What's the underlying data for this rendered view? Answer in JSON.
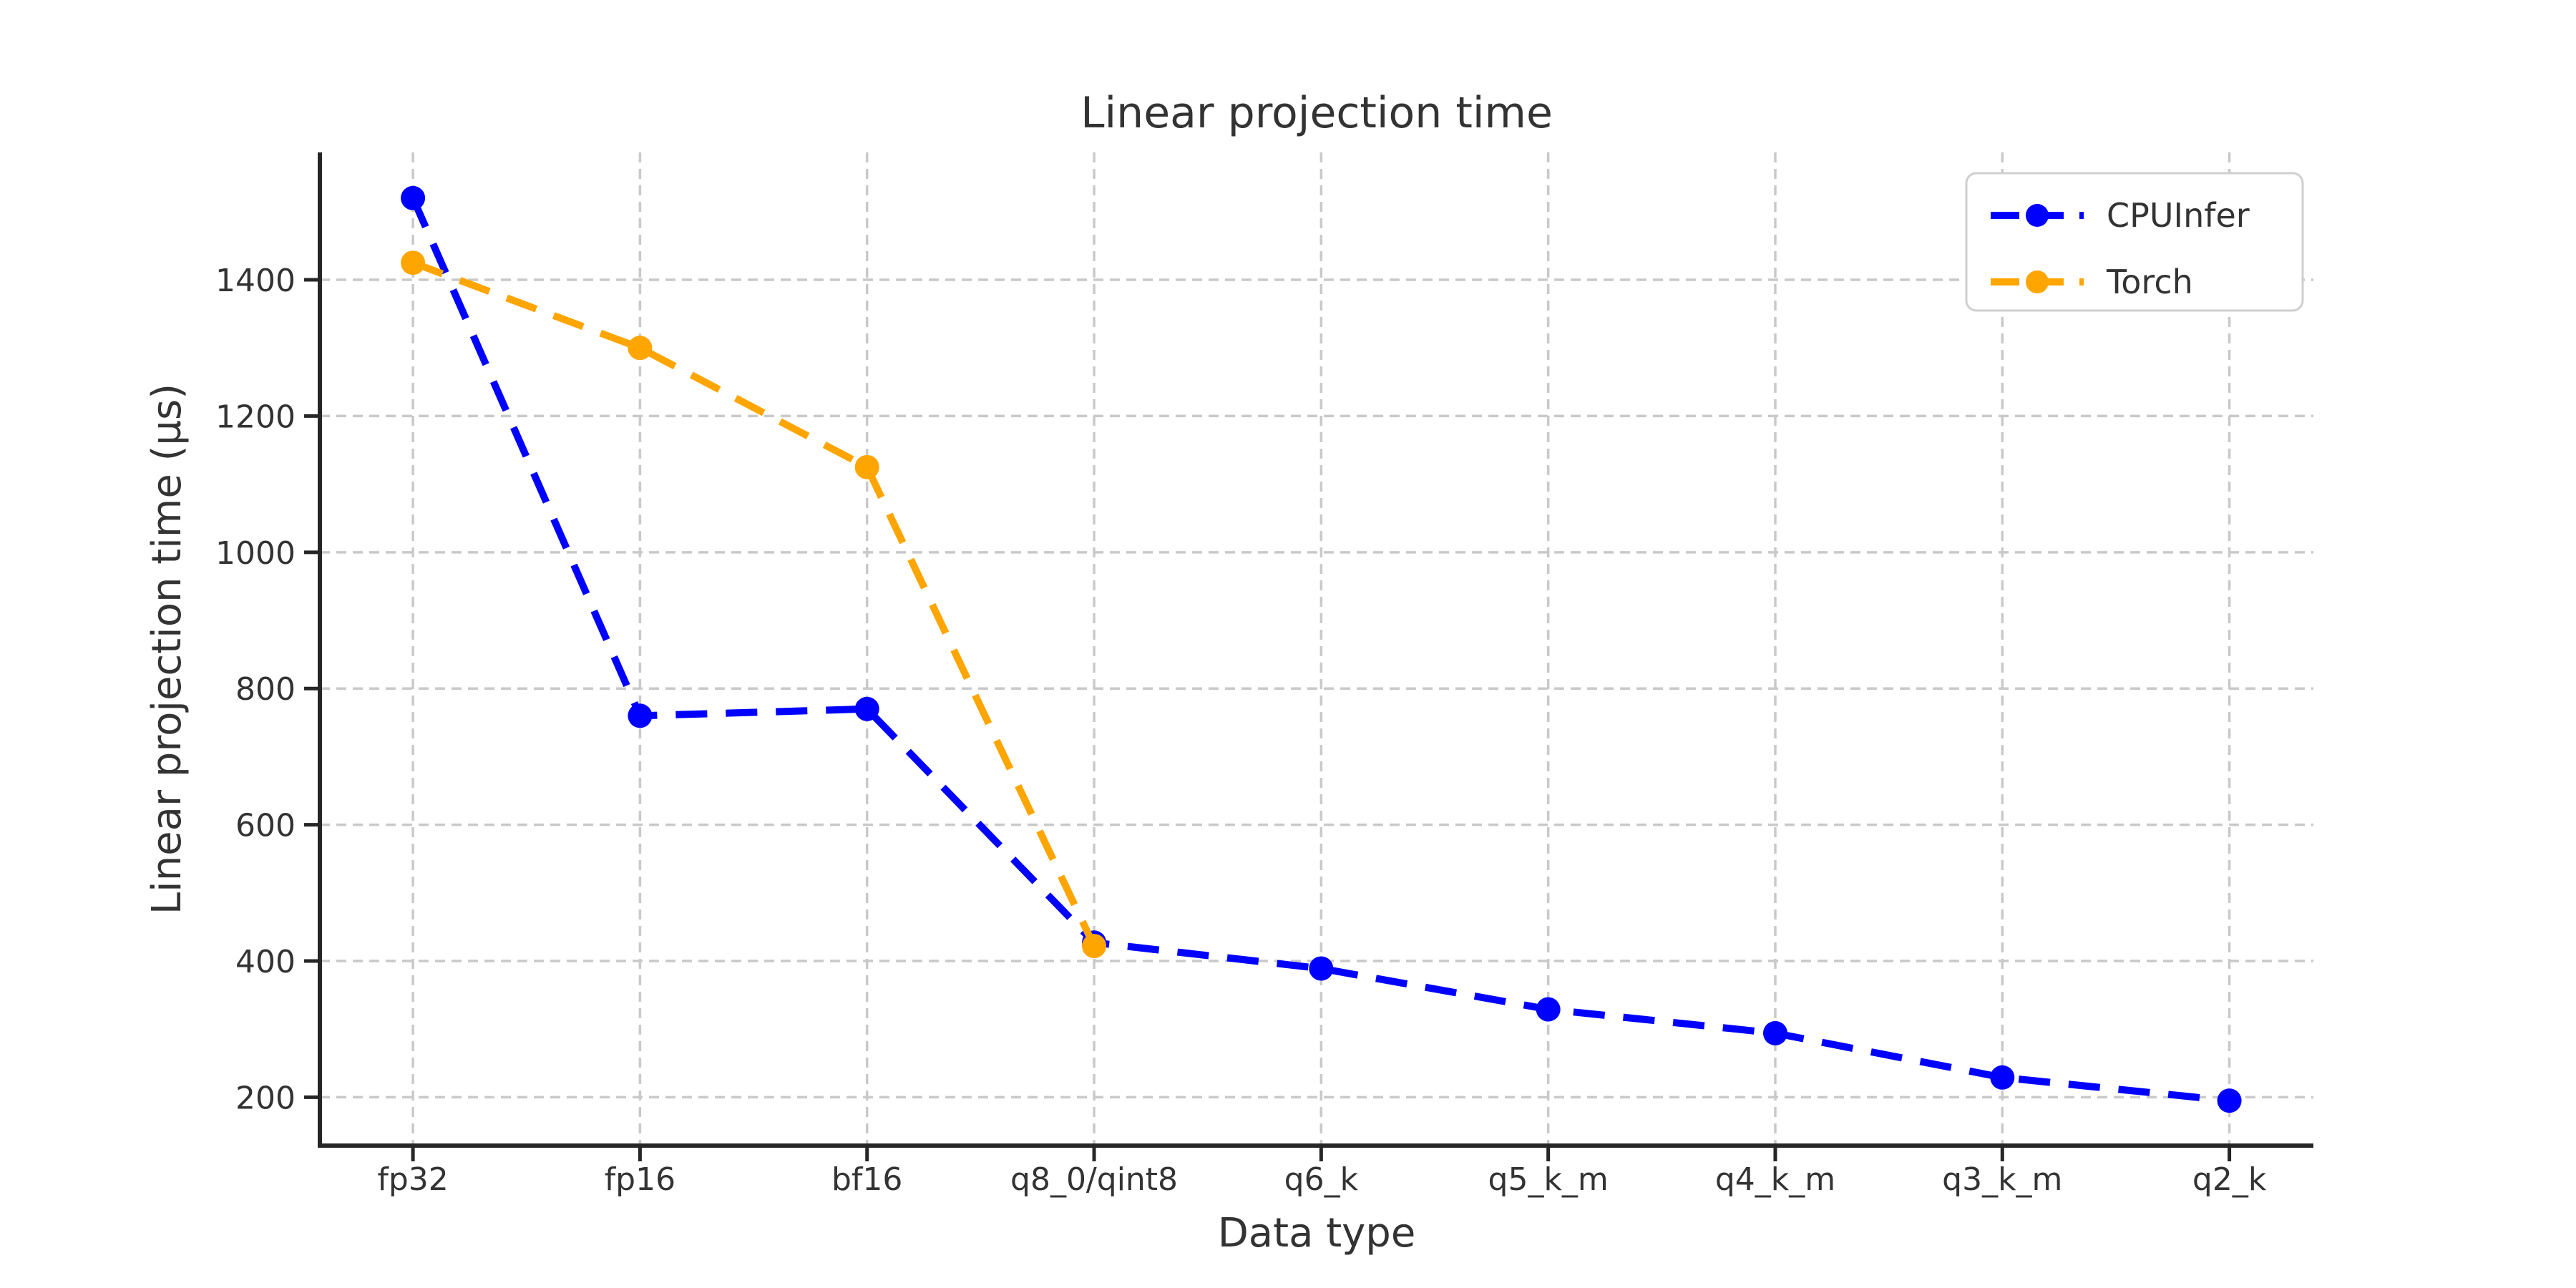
{
  "chart_data": {
    "type": "line",
    "title": "Linear projection time",
    "xlabel": "Data type",
    "ylabel": "Linear projection time (µs)",
    "categories": [
      "fp32",
      "fp16",
      "bf16",
      "q8_0/qint8",
      "q6_k",
      "q5_k_m",
      "q4_k_m",
      "q3_k_m",
      "q2_k"
    ],
    "series": [
      {
        "name": "CPUInfer",
        "color": "#0000ff",
        "linestyle": "dashed",
        "marker": "circle",
        "values": [
          1520,
          760,
          770,
          427,
          389,
          329,
          294,
          229,
          195
        ]
      },
      {
        "name": "Torch",
        "color": "#ffa500",
        "linestyle": "dashed",
        "marker": "circle",
        "values": [
          1425,
          1300,
          1125,
          422
        ]
      }
    ],
    "yticks": [
      200,
      400,
      600,
      800,
      1000,
      1200,
      1400
    ],
    "ylim": [
      129,
      1587
    ],
    "xlim": [
      -0.41,
      8.37
    ],
    "grid": true,
    "grid_color": "#c9c9c9",
    "axis_color": "#262626",
    "text_color": "#333333",
    "legend_position": "upper right"
  }
}
